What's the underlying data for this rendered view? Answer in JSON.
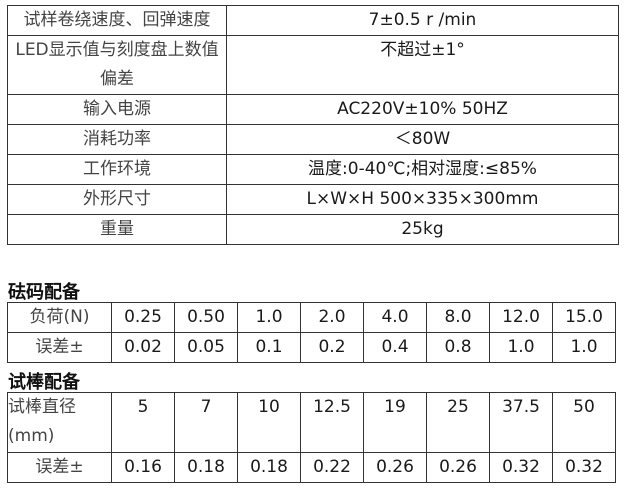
{
  "specs": [
    {
      "label": "试样卷绕速度、回弹速度",
      "value": "7±0.5 r /min"
    },
    {
      "label": "LED显示值与刻度盘上数值偏差",
      "value": "不超过±1°"
    },
    {
      "label": "输入电源",
      "value": "AC220V±10%  50HZ"
    },
    {
      "label": "消耗功率",
      "value": "＜80W"
    },
    {
      "label": "工作环境",
      "value": "温度:0-40℃;相对湿度:≤85%"
    },
    {
      "label": "外形尺寸",
      "value": "L×W×H  500×335×300mm"
    },
    {
      "label": "重量",
      "value": "25kg"
    }
  ],
  "weights": {
    "title": "砝码配备",
    "load_label": "负荷(N)",
    "loads": [
      "0.25",
      "0.50",
      "1.0",
      "2.0",
      "4.0",
      "8.0",
      "12.0",
      "15.0"
    ],
    "error_label": "误差±",
    "errors": [
      "0.02",
      "0.05",
      "0.1",
      "0.2",
      "0.4",
      "0.8",
      "1.0",
      "1.0"
    ]
  },
  "rods": {
    "title": "试棒配备",
    "diameter_label": "试棒直径(mm)",
    "diameters": [
      "5",
      "7",
      "10",
      "12.5",
      "19",
      "25",
      "37.5",
      "50"
    ],
    "error_label": "误差±",
    "errors": [
      "0.16",
      "0.18",
      "0.18",
      "0.22",
      "0.26",
      "0.26",
      "0.32",
      "0.32"
    ]
  }
}
